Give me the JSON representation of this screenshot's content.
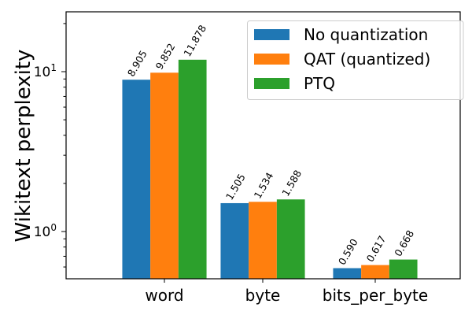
{
  "chart_data": {
    "type": "bar",
    "title": "",
    "xlabel": "",
    "ylabel": "Wikitext perplexity",
    "yscale": "log",
    "ylim": [
      0.5,
      24
    ],
    "yticks": [
      {
        "value": 1,
        "label": "10",
        "exp": "0"
      },
      {
        "value": 10,
        "label": "10",
        "exp": "1"
      }
    ],
    "categories": [
      "word",
      "byte",
      "bits_per_byte"
    ],
    "series": [
      {
        "name": "No quantization",
        "color": "#1f77b4",
        "values": [
          8.905,
          1.505,
          0.59
        ],
        "labels": [
          "8.905",
          "1.505",
          "0.590"
        ]
      },
      {
        "name": "QAT (quantized)",
        "color": "#ff7f0e",
        "values": [
          9.852,
          1.534,
          0.617
        ],
        "labels": [
          "9.852",
          "1.534",
          "0.617"
        ]
      },
      {
        "name": "PTQ",
        "color": "#2ca02c",
        "values": [
          11.878,
          1.588,
          0.668
        ],
        "labels": [
          "11.878",
          "1.588",
          "0.668"
        ]
      }
    ],
    "legend_position": "upper right",
    "grid": false,
    "bar_label_rotation": 60
  }
}
